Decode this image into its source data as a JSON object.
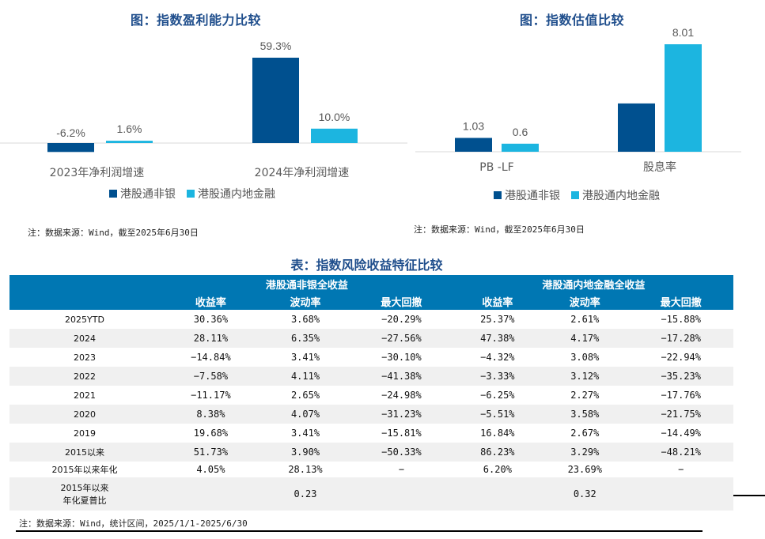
{
  "chart_data": [
    {
      "type": "bar",
      "title": "图：指数盈利能力比较",
      "categories": [
        "2023年净利润增速",
        "2024年净利润增速"
      ],
      "series": [
        {
          "name": "港股通非银",
          "color": "#00508f",
          "values": [
            -6.2,
            59.3
          ],
          "labels": [
            "-6.2%",
            "59.3%"
          ]
        },
        {
          "name": "港股通内地金融",
          "color": "#1cb5e0",
          "values": [
            1.6,
            10.0
          ],
          "labels": [
            "1.6%",
            "10.0%"
          ]
        }
      ],
      "xlabel": "",
      "ylabel": "",
      "ylim": [
        -10,
        65
      ],
      "grid": false,
      "legend": "bottom",
      "note": "注：数据来源：Wind，截至2025年6月30日"
    },
    {
      "type": "bar",
      "title": "图：指数估值比较",
      "categories": [
        "PB -LF",
        "股息率"
      ],
      "series": [
        {
          "name": "港股通非银",
          "color": "#00508f",
          "values": [
            1.03,
            3.6
          ],
          "labels": [
            "1.03",
            ""
          ]
        },
        {
          "name": "港股通内地金融",
          "color": "#1cb5e0",
          "values": [
            0.6,
            8.01
          ],
          "labels": [
            "0.6",
            "8.01"
          ]
        }
      ],
      "xlabel": "",
      "ylabel": "",
      "ylim": [
        0,
        9
      ],
      "grid": false,
      "legend": "bottom",
      "note": "注：数据来源：Wind，截至2025年6月30日"
    },
    {
      "type": "table",
      "title": "表：指数风险收益特征比较",
      "group_headers": [
        "",
        "港股通非银全收益",
        "港股通内地金融全收益"
      ],
      "columns": [
        "",
        "收益率",
        "波动率",
        "最大回撤",
        "收益率",
        "波动率",
        "最大回撤"
      ],
      "rows": [
        [
          "2025YTD",
          "30.36%",
          "3.68%",
          "−20.29%",
          "25.37%",
          "2.61%",
          "−15.88%"
        ],
        [
          "2024",
          "28.11%",
          "6.35%",
          "−27.56%",
          "47.38%",
          "4.17%",
          "−17.28%"
        ],
        [
          "2023",
          "−14.84%",
          "3.41%",
          "−30.10%",
          "−4.32%",
          "3.08%",
          "−22.94%"
        ],
        [
          "2022",
          "−7.58%",
          "4.11%",
          "−41.38%",
          "−3.33%",
          "3.12%",
          "−35.23%"
        ],
        [
          "2021",
          "−11.17%",
          "2.65%",
          "−24.98%",
          "−6.25%",
          "2.27%",
          "−17.76%"
        ],
        [
          "2020",
          "8.38%",
          "4.07%",
          "−31.23%",
          "−5.51%",
          "3.58%",
          "−21.75%"
        ],
        [
          "2019",
          "19.68%",
          "3.41%",
          "−15.81%",
          "16.84%",
          "2.67%",
          "−14.49%"
        ],
        [
          "2015以来",
          "51.73%",
          "3.90%",
          "−50.33%",
          "86.23%",
          "3.29%",
          "−48.21%"
        ],
        [
          "2015年以来年化",
          "4.05%",
          "28.13%",
          "−",
          "6.20%",
          "23.69%",
          "−"
        ],
        [
          "2015年以来\n年化夏普比",
          "",
          "0.23",
          "",
          "",
          "0.32",
          ""
        ]
      ],
      "note": "注：数据来源：Wind，统计区间，2025/1/1-2025/6/30"
    }
  ],
  "colors": {
    "series1": "#00508f",
    "series2": "#1cb5e0",
    "header": "#0077b3",
    "title": "#1f4e8c"
  }
}
